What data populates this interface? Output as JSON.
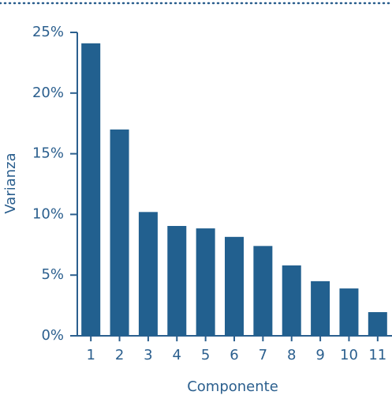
{
  "chart_data": {
    "type": "bar",
    "x_label": "Componente",
    "y_label": "Varianza",
    "categories": [
      "1",
      "2",
      "3",
      "4",
      "5",
      "6",
      "7",
      "8",
      "9",
      "10",
      "11"
    ],
    "values": [
      24.1,
      17.0,
      10.2,
      9.05,
      8.85,
      8.15,
      7.4,
      5.8,
      4.5,
      3.9,
      1.95
    ],
    "color": "#22608f",
    "ylim": [
      0,
      25
    ],
    "yticks": [
      {
        "value": 0,
        "label": "0%"
      },
      {
        "value": 5,
        "label": "5%"
      },
      {
        "value": 10,
        "label": "10%"
      },
      {
        "value": 15,
        "label": "15%"
      },
      {
        "value": 20,
        "label": "20%"
      },
      {
        "value": 25,
        "label": "25%"
      }
    ],
    "grid": false
  }
}
